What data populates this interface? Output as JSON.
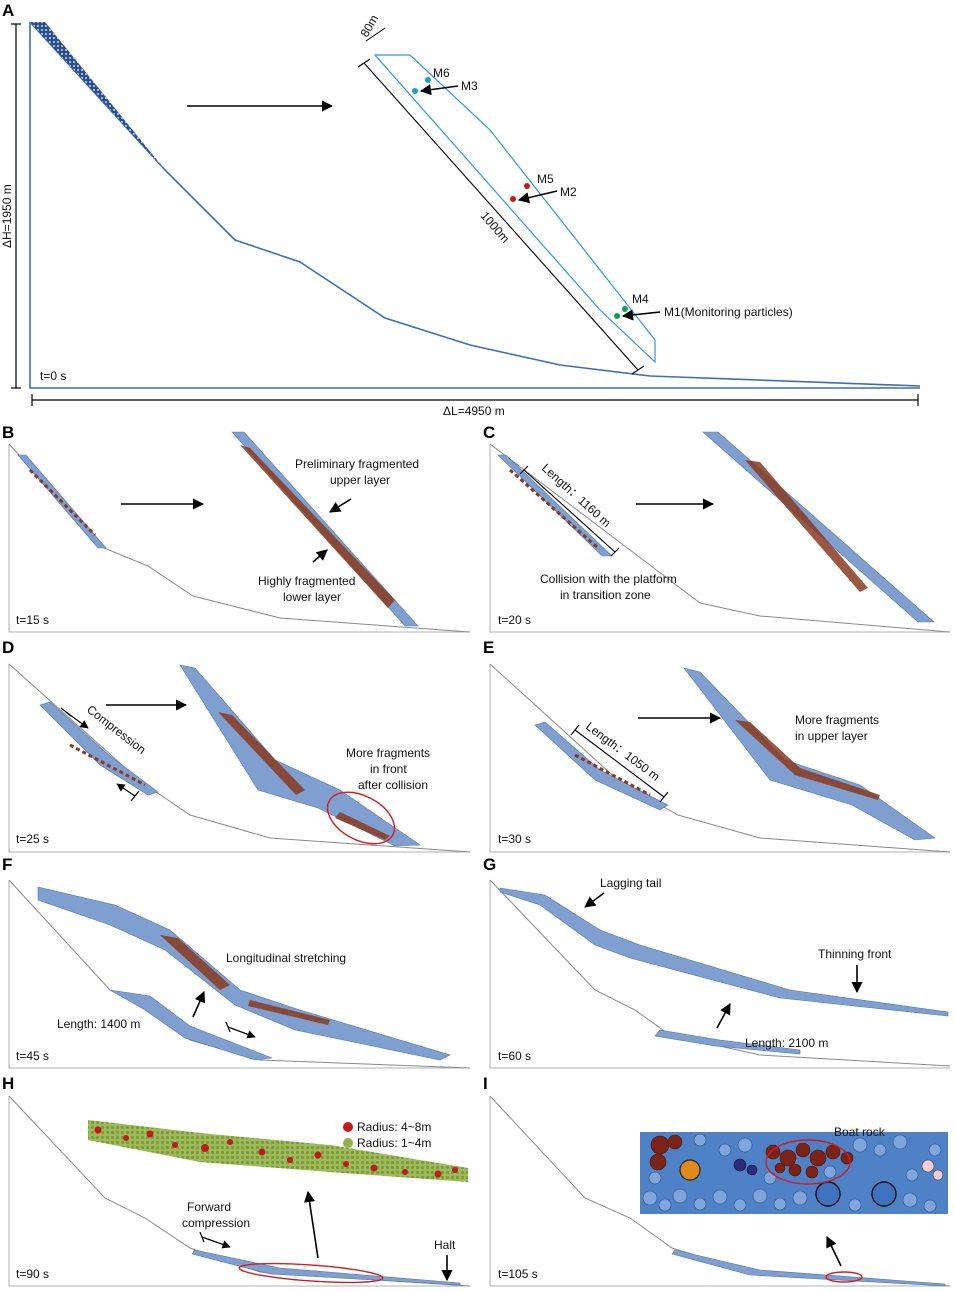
{
  "panels": {
    "A": {
      "label": "A",
      "time": "t=0 s",
      "dh": "ΔH=1950 m",
      "dl": "ΔL=4950 m",
      "width_dim": "80m",
      "length_dim": "1000m",
      "markers": {
        "m1": "M1(Monitoring particles)",
        "m2": "M2",
        "m3": "M3",
        "m4": "M4",
        "m5": "M5",
        "m6": "M6"
      }
    },
    "B": {
      "label": "B",
      "time": "t=15 s",
      "upper": [
        "Preliminary fragmented",
        "upper layer"
      ],
      "lower": [
        "Highly fragmented",
        "lower layer"
      ]
    },
    "C": {
      "label": "C",
      "time": "t=20 s",
      "length": "Length：1160 m",
      "collision": [
        "Collision with the platform",
        "in transition zone"
      ]
    },
    "D": {
      "label": "D",
      "time": "t=25 s",
      "compression": "Compression",
      "front": [
        "More fragments",
        "in front",
        "after collision"
      ]
    },
    "E": {
      "label": "E",
      "time": "t=30 s",
      "length": "Length：1050 m",
      "upper": [
        "More fragments",
        "in upper layer"
      ]
    },
    "F": {
      "label": "F",
      "time": "t=45 s",
      "stretch": "Longitudinal stretching",
      "length": "Length: 1400 m"
    },
    "G": {
      "label": "G",
      "time": "t=60 s",
      "tail": "Lagging tail",
      "front": "Thinning front",
      "length": "Length: 2100 m"
    },
    "H": {
      "label": "H",
      "time": "t=90 s",
      "forward": [
        "Forward",
        "compression"
      ],
      "halt": "Halt",
      "legend": {
        "large": "Radius: 4~8m",
        "small": "Radius: 1~4m"
      }
    },
    "I": {
      "label": "I",
      "time": "t=105 s",
      "boat": "Boat rock"
    }
  },
  "colors": {
    "mass": "#7e9fcf",
    "fragment": "#8a3a1e",
    "slope_outline": "#3d6fb4",
    "large_particle": "#c01a1a",
    "small_particle": "#8fb24a",
    "highlight": "#d21e1e"
  }
}
